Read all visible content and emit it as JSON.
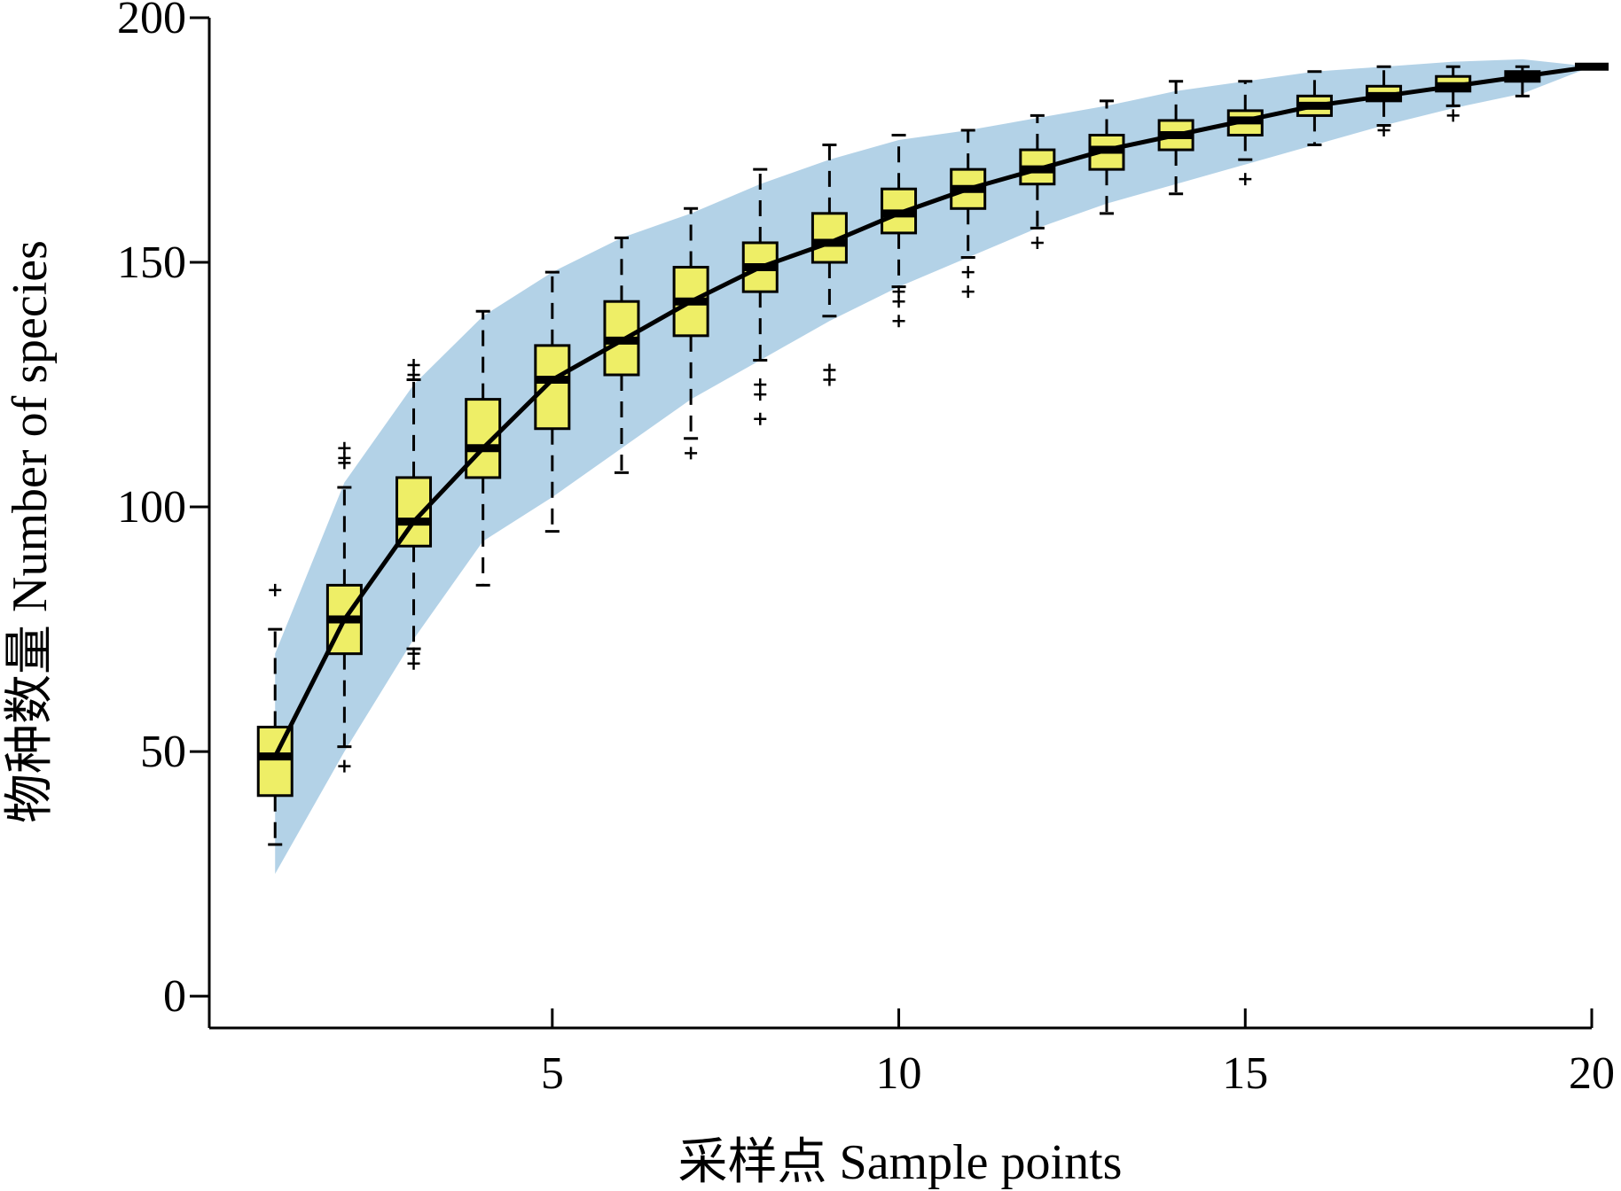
{
  "chart_data": {
    "type": "box",
    "xlabel": "采样点 Sample points",
    "ylabel": "物种数量 Number of species",
    "xlim": [
      0.05,
      20
    ],
    "ylim": [
      -6.5,
      200
    ],
    "xticks": [
      5,
      10,
      15,
      20
    ],
    "yticks": [
      0,
      50,
      100,
      150,
      200
    ],
    "grid": false,
    "colors": {
      "box_fill": "#eeee66",
      "band": "#b3d2e7",
      "line": "#000000"
    },
    "x": [
      1,
      2,
      3,
      4,
      5,
      6,
      7,
      8,
      9,
      10,
      11,
      12,
      13,
      14,
      15,
      16,
      17,
      18,
      19,
      20
    ],
    "band_upper": [
      70,
      105,
      125,
      139,
      148,
      155,
      160,
      166,
      171,
      175,
      177,
      179.5,
      182,
      185,
      187,
      189,
      190,
      191,
      191.5,
      190
    ],
    "band_lower": [
      25,
      50,
      73,
      93,
      102,
      112,
      122,
      130,
      138,
      145,
      151,
      157,
      162,
      166,
      170,
      174,
      178,
      181.5,
      184.5,
      190
    ],
    "boxes": [
      {
        "x": 1,
        "whisker_low": 31,
        "q1": 41,
        "median": 49,
        "q3": 55,
        "whisker_high": 75,
        "outliers": [
          83
        ]
      },
      {
        "x": 2,
        "whisker_low": 51,
        "q1": 70,
        "median": 77,
        "q3": 84,
        "whisker_high": 104,
        "outliers": [
          47,
          109,
          110,
          112
        ]
      },
      {
        "x": 3,
        "whisker_low": 71,
        "q1": 92,
        "median": 97,
        "q3": 106,
        "whisker_high": 126,
        "outliers": [
          68,
          70,
          127,
          129
        ]
      },
      {
        "x": 4,
        "whisker_low": 84,
        "q1": 106,
        "median": 112,
        "q3": 122,
        "whisker_high": 140,
        "outliers": []
      },
      {
        "x": 5,
        "whisker_low": 95,
        "q1": 116,
        "median": 126,
        "q3": 133,
        "whisker_high": 148,
        "outliers": []
      },
      {
        "x": 6,
        "whisker_low": 107,
        "q1": 127,
        "median": 134,
        "q3": 142,
        "whisker_high": 155,
        "outliers": []
      },
      {
        "x": 7,
        "whisker_low": 114,
        "q1": 135,
        "median": 142,
        "q3": 149,
        "whisker_high": 161,
        "outliers": [
          111
        ]
      },
      {
        "x": 8,
        "whisker_low": 130,
        "q1": 144,
        "median": 149,
        "q3": 154,
        "whisker_high": 169,
        "outliers": [
          118,
          123,
          125
        ]
      },
      {
        "x": 9,
        "whisker_low": 139,
        "q1": 150,
        "median": 154,
        "q3": 160,
        "whisker_high": 174,
        "outliers": [
          126,
          128
        ]
      },
      {
        "x": 10,
        "whisker_low": 145,
        "q1": 156,
        "median": 160,
        "q3": 165,
        "whisker_high": 176,
        "outliers": [
          138,
          142,
          144
        ]
      },
      {
        "x": 11,
        "whisker_low": 151,
        "q1": 161,
        "median": 165,
        "q3": 169,
        "whisker_high": 177,
        "outliers": [
          144,
          148
        ]
      },
      {
        "x": 12,
        "whisker_low": 157,
        "q1": 166,
        "median": 169,
        "q3": 173,
        "whisker_high": 180,
        "outliers": [
          154
        ]
      },
      {
        "x": 13,
        "whisker_low": 160,
        "q1": 169,
        "median": 173,
        "q3": 176,
        "whisker_high": 183,
        "outliers": []
      },
      {
        "x": 14,
        "whisker_low": 164,
        "q1": 173,
        "median": 176,
        "q3": 179,
        "whisker_high": 187,
        "outliers": []
      },
      {
        "x": 15,
        "whisker_low": 171,
        "q1": 176,
        "median": 179,
        "q3": 181,
        "whisker_high": 187,
        "outliers": [
          167
        ]
      },
      {
        "x": 16,
        "whisker_low": 174,
        "q1": 180,
        "median": 182,
        "q3": 184,
        "whisker_high": 189,
        "outliers": []
      },
      {
        "x": 17,
        "whisker_low": 178,
        "q1": 183,
        "median": 184,
        "q3": 186,
        "whisker_high": 190,
        "outliers": [
          177
        ]
      },
      {
        "x": 18,
        "whisker_low": 182,
        "q1": 185,
        "median": 186,
        "q3": 188,
        "whisker_high": 190,
        "outliers": [
          180
        ]
      },
      {
        "x": 19,
        "whisker_low": 184,
        "q1": 187,
        "median": 188,
        "q3": 189,
        "whisker_high": 190,
        "outliers": []
      },
      {
        "x": 20,
        "whisker_low": 190,
        "q1": 190,
        "median": 190,
        "q3": 190,
        "whisker_high": 190,
        "outliers": []
      }
    ]
  }
}
